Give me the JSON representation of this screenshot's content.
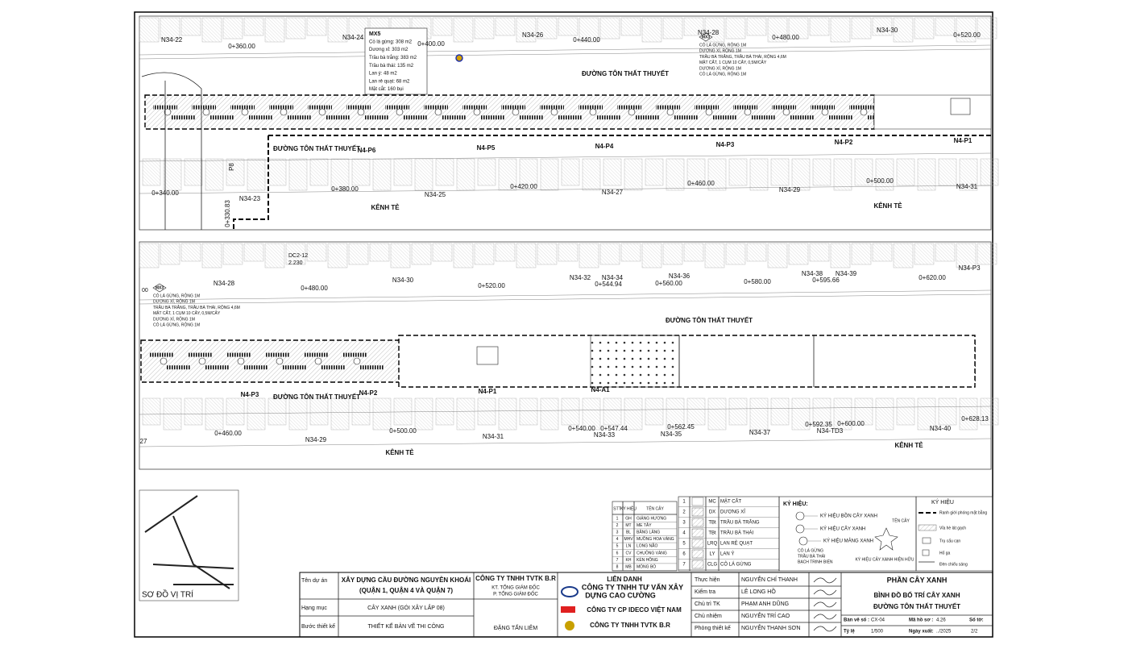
{
  "strip_1": {
    "top_lots": [
      "N34-22",
      "N34-24",
      "N34-26",
      "N34-28",
      "N34-30"
    ],
    "top_stations": [
      "0+360.00",
      "0+400.00",
      "0+440.00",
      "0+480.00",
      "0+520.00"
    ],
    "bottom_stations": [
      "0+340.00",
      "0+380.00",
      "0+420.00",
      "0+460.00",
      "0+500.00"
    ],
    "bottom_lots": [
      "N34-23",
      "N34-25",
      "N34-27",
      "N34-29",
      "N34-31"
    ],
    "segments": [
      "N4-P6",
      "N4-P5",
      "N4-P4",
      "N4-P3",
      "N4-P2",
      "N4-P1"
    ],
    "road_name": "ĐƯỜNG TÔN THẤT THUYẾT",
    "canal_name": "KÊNH TẺ",
    "station_start": "0+330.83",
    "pier": "P8",
    "mx5": [
      "MX5",
      "Cỏ lá gừng: 308 m2",
      "Dương xỉ: 303 m2",
      "Trầu bà trắng: 383 m2",
      "Trầu bà thái: 135 m2",
      "Lan ý: 48 m2",
      "Lan rẻ quạt: 68 m2",
      "Mặt cắt: 160 bụi"
    ]
  },
  "mx3_note": [
    "MX3",
    "CỎ LÁ GỪNG, RỘNG 1M",
    "DƯƠNG XỈ, RỘNG 1M",
    "TRẦU BÀ TRẮNG, TRẦU BÀ THÁI, RỘNG 4,6M",
    "MẶT CẮT, 1 CỤM 10 CÂY, 0,5M/CÂY",
    "DƯƠNG XỈ, RỘNG 1M",
    "CỎ LÁ GỪNG, RỘNG 1M"
  ],
  "strip_2": {
    "edge_station": "00",
    "top_lots": [
      "N34-28",
      "N34-30",
      "N34-32",
      "N34-34",
      "N34-36",
      "N34-38",
      "N34-39",
      "N34-P3"
    ],
    "top_stations": [
      "0+480.00",
      "0+520.00",
      "0+544.94",
      "0+560.00",
      "0+580.00",
      "0+595.66",
      "0+620.00"
    ],
    "benchmark": [
      "DC2-12",
      "2.230"
    ],
    "segments": [
      "N4-P3",
      "N4-P2",
      "N4-P1",
      "N4-A1"
    ],
    "bottom_stations": [
      "0+460.00",
      "0+500.00",
      "0+540.00",
      "0+547.44",
      "0+562.45",
      "0+592.35",
      "0+600.00",
      "0+628.13"
    ],
    "bottom_lots": [
      "27",
      "N34-29",
      "N34-31",
      "N34-33",
      "N34-35",
      "N34-37",
      "N34-TD3",
      "N34-40"
    ]
  },
  "location_map": {
    "title": "SƠ ĐỒ VỊ TRÍ"
  },
  "plant_table": {
    "header": [
      "STT",
      "KÝ HIỆU",
      "TÊN CÂY"
    ],
    "rows": [
      [
        "1",
        "GH",
        "GIẢNG HƯƠNG"
      ],
      [
        "2",
        "MT",
        "ME TÂY"
      ],
      [
        "3",
        "BL",
        "BẰNG LĂNG"
      ],
      [
        "4",
        "MHV",
        "MUỒNG HOA VÀNG"
      ],
      [
        "5",
        "LN",
        "LONG NÃO"
      ],
      [
        "6",
        "CV",
        "CHUÔNG VÀNG"
      ],
      [
        "7",
        "KH",
        "KÈN HỒNG"
      ],
      [
        "8",
        "MB",
        "MÓNG BÒ"
      ]
    ]
  },
  "groundcover_table": {
    "rows": [
      [
        "1",
        "MC",
        "MẶT CẮT"
      ],
      [
        "2",
        "DX",
        "DƯƠNG XỈ"
      ],
      [
        "3",
        "TBt",
        "TRẦU BÀ TRẮNG"
      ],
      [
        "4",
        "TBt",
        "TRẦU BÀ THÁI"
      ],
      [
        "5",
        "LRQ",
        "LAN RẺ QUẠT"
      ],
      [
        "6",
        "LY",
        "LAN Ý"
      ],
      [
        "7",
        "CLG",
        "CỎ LÁ GỪNG"
      ]
    ]
  },
  "symbols": {
    "title": "KÝ HIỆU:",
    "items": [
      "KÝ HIỆU BỒN CÂY XANH",
      "KÝ HIỆU CÂY XANH",
      "KÝ HIỆU MẢNG XANH"
    ],
    "tree_name": "TÊN CÂY",
    "existing": "KÝ HIỆU CÂY XANH HIỆN HỮU",
    "example": [
      "CỎ LÁ GỪNG",
      "TRẦU BÀ THÁI",
      "BẠCH TRINH BIỂN"
    ]
  },
  "legend": {
    "title": "KÝ HIỆU",
    "items": [
      "Ranh giới phóng mặt bằng",
      "Vỉa hè lát gạch",
      "Trụ cấu cạn",
      "Hố ga",
      "Đèn chiếu sáng"
    ]
  },
  "title_block": {
    "project_label": "Tên dự án",
    "project": [
      "XÂY DỰNG CẦU ĐƯỜNG NGUYỄN KHOÁI",
      "(QUẬN 1, QUẬN 4 VÀ QUẬN 7)"
    ],
    "item_label": "Hạng mục",
    "item": "CÂY XANH (GÓI XÂY LẮP 08)",
    "stage_label": "Bước thiết kế",
    "stage": "THIẾT KẾ BẢN VẼ THI CÔNG",
    "company": [
      "CÔNG TY TNHH TVTK B.R",
      "KT. TỔNG GIÁM ĐỐC",
      "P. TỔNG GIÁM ĐỐC"
    ],
    "director": "ĐẶNG TẤN LIÊM",
    "joint": [
      "LIÊN DANH",
      "CÔNG TY TNHH TƯ VẤN XÂY",
      "DỰNG CAO CƯỜNG",
      "CÔNG TY CP IDECO VIỆT NAM",
      "CÔNG TY TNHH TVTK B.R"
    ],
    "staff": [
      [
        "Thực hiện",
        "NGUYỄN CHÍ THANH"
      ],
      [
        "Kiểm tra",
        "LÊ LONG HỒ"
      ],
      [
        "Chủ trì TK",
        "PHẠM ANH DŨNG"
      ],
      [
        "Chủ nhiệm",
        "NGUYỄN TRÍ CAO"
      ],
      [
        "Phòng thiết kế",
        "NGUYỄN THANH SƠN"
      ]
    ],
    "section": "PHẦN CÂY XANH",
    "drawing": [
      "BÌNH ĐỒ BỐ TRÍ CÂY XANH",
      "ĐƯỜNG TÔN THẤT THUYẾT"
    ],
    "meta": [
      [
        "Bản vẽ số :",
        "CX-04"
      ],
      [
        "Mã hồ sơ :",
        "4.26"
      ],
      [
        "Số tờ:",
        "2/2"
      ],
      [
        "Tỷ lệ",
        "1/500"
      ],
      [
        "Ngày xuất:",
        "../2025"
      ]
    ]
  }
}
